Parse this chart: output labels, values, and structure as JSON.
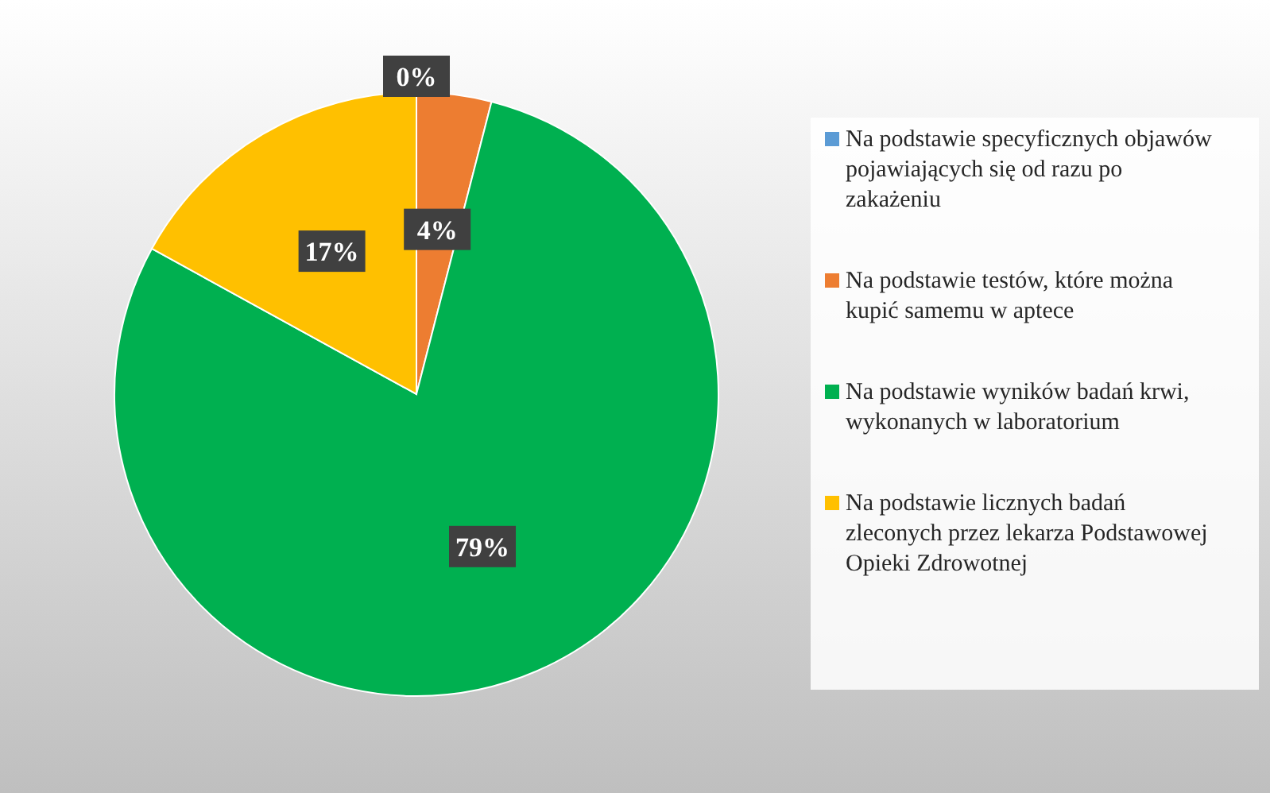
{
  "chart_data": {
    "type": "pie",
    "categories": [
      "Na podstawie specyficznych objawów pojawiających się od razu po zakażeniu",
      "Na podstawie testów, które można kupić samemu w aptece",
      "Na podstawie wyników badań krwi, wykonanych w laboratorium",
      "Na podstawie licznych badań zleconych przez lekarza Podstawowej Opieki Zdrowotnej"
    ],
    "values": [
      0,
      4,
      79,
      17
    ],
    "colors": [
      "#5b9bd5",
      "#ed7d31",
      "#00b050",
      "#ffc000"
    ],
    "value_labels": [
      "0%",
      "4%",
      "79%",
      "17%"
    ],
    "legend": "right"
  }
}
